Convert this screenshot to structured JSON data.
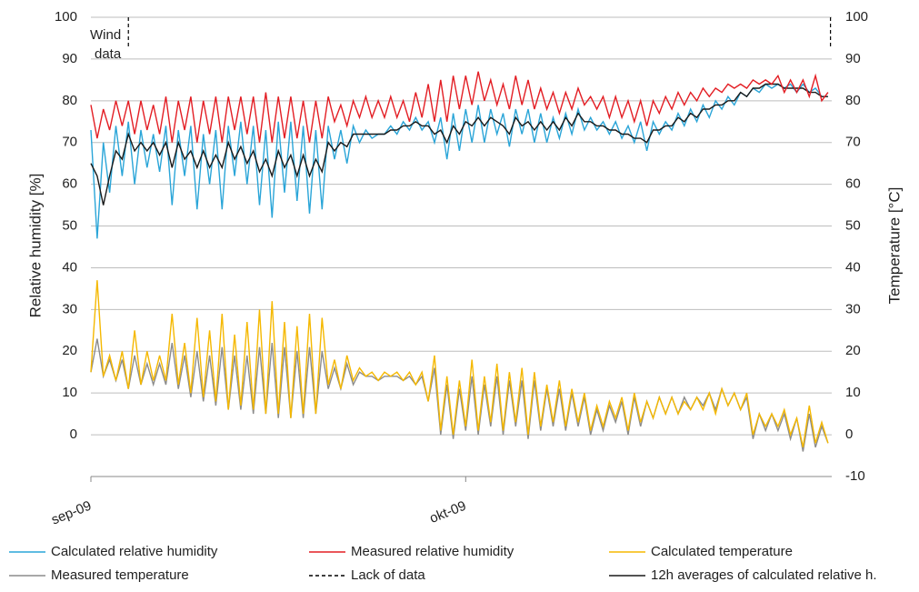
{
  "chart_data": {
    "type": "line",
    "y_label": "Relative humidity [%]",
    "y2_label": "Temperature [°C]",
    "xlim": [
      0,
      59.3
    ],
    "xticks": [
      {
        "value": 0,
        "label": "sep-09"
      },
      {
        "value": 30,
        "label": "okt-09"
      }
    ],
    "ylim": [
      -10,
      100
    ],
    "yticks": [
      0,
      10,
      20,
      30,
      40,
      50,
      60,
      70,
      80,
      90,
      100
    ],
    "y2lim": [
      -10,
      100
    ],
    "y2ticks": [
      -10,
      0,
      10,
      20,
      30,
      40,
      50,
      60,
      70,
      80,
      90,
      100
    ],
    "grid": true,
    "legend": "bottom",
    "annotation": [
      "Wind",
      "data"
    ],
    "x": [
      0,
      0.5,
      1,
      1.5,
      2,
      2.5,
      3,
      3.5,
      4,
      4.5,
      5,
      5.5,
      6,
      6.5,
      7,
      7.5,
      8,
      8.5,
      9,
      9.5,
      10,
      10.5,
      11,
      11.5,
      12,
      12.5,
      13,
      13.5,
      14,
      14.5,
      15,
      15.5,
      16,
      16.5,
      17,
      17.5,
      18,
      18.5,
      19,
      19.5,
      20,
      20.5,
      21,
      21.5,
      22,
      22.5,
      23,
      23.5,
      24,
      24.5,
      25,
      25.5,
      26,
      26.5,
      27,
      27.5,
      28,
      28.5,
      29,
      29.5,
      30,
      30.5,
      31,
      31.5,
      32,
      32.5,
      33,
      33.5,
      34,
      34.5,
      35,
      35.5,
      36,
      36.5,
      37,
      37.5,
      38,
      38.5,
      39,
      39.5,
      40,
      40.5,
      41,
      41.5,
      42,
      42.5,
      43,
      43.5,
      44,
      44.5,
      45,
      45.5,
      46,
      46.5,
      47,
      47.5,
      48,
      48.5,
      49,
      49.5,
      50,
      50.5,
      51,
      51.5,
      52,
      52.5,
      53,
      53.5,
      54,
      54.5,
      55,
      55.5,
      56,
      56.5,
      57,
      57.5,
      58,
      58.5,
      59
    ],
    "series": [
      {
        "name": "Calculated relative humidity",
        "color": "#2aa5d8",
        "axis": "y",
        "values": [
          73,
          47,
          70,
          58,
          74,
          62,
          75,
          60,
          73,
          64,
          72,
          63,
          74,
          55,
          73,
          62,
          74,
          54,
          72,
          60,
          73,
          54,
          74,
          62,
          75,
          60,
          74,
          55,
          73,
          52,
          75,
          58,
          75,
          56,
          74,
          53,
          73,
          54,
          74,
          66,
          73,
          65,
          74,
          70,
          73,
          71,
          72,
          72,
          74,
          72,
          75,
          73,
          76,
          73,
          75,
          70,
          76,
          66,
          77,
          68,
          78,
          70,
          79,
          70,
          78,
          72,
          77,
          69,
          78,
          72,
          78,
          70,
          77,
          70,
          76,
          71,
          77,
          72,
          78,
          73,
          76,
          73,
          75,
          72,
          75,
          71,
          74,
          70,
          75,
          68,
          75,
          72,
          75,
          73,
          77,
          74,
          78,
          75,
          79,
          76,
          80,
          78,
          81,
          79,
          82,
          81,
          83,
          82,
          84,
          83,
          84,
          83,
          84,
          82,
          84,
          82,
          83,
          81,
          81
        ]
      },
      {
        "name": "Measured relative humidity",
        "color": "#e31e24",
        "axis": "y",
        "values": [
          79,
          71,
          78,
          73,
          80,
          74,
          80,
          72,
          80,
          73,
          79,
          72,
          81,
          70,
          80,
          73,
          81,
          70,
          80,
          72,
          81,
          70,
          81,
          73,
          81,
          72,
          81,
          70,
          82,
          70,
          81,
          71,
          81,
          71,
          80,
          70,
          80,
          71,
          81,
          75,
          79,
          74,
          80,
          76,
          81,
          76,
          80,
          76,
          81,
          76,
          80,
          75,
          82,
          76,
          84,
          75,
          85,
          75,
          86,
          78,
          86,
          79,
          87,
          80,
          85,
          79,
          84,
          78,
          86,
          79,
          85,
          78,
          83,
          78,
          82,
          77,
          82,
          78,
          83,
          79,
          81,
          78,
          81,
          76,
          81,
          76,
          80,
          75,
          80,
          74,
          80,
          77,
          81,
          78,
          82,
          79,
          82,
          80,
          83,
          81,
          83,
          82,
          84,
          83,
          84,
          83,
          85,
          84,
          85,
          84,
          86,
          82,
          85,
          82,
          85,
          81,
          86,
          80,
          82
        ]
      },
      {
        "name": "Calculated temperature",
        "color": "#f5b800",
        "axis": "y2",
        "values": [
          15,
          37,
          14,
          19,
          13,
          20,
          11,
          25,
          12,
          20,
          13,
          19,
          13,
          29,
          12,
          22,
          10,
          28,
          9,
          25,
          8,
          29,
          6,
          24,
          7,
          27,
          6,
          30,
          5,
          32,
          5,
          27,
          4,
          26,
          5,
          29,
          5,
          28,
          12,
          18,
          11,
          19,
          13,
          16,
          14,
          15,
          13,
          15,
          14,
          15,
          13,
          15,
          12,
          15,
          8,
          19,
          1,
          14,
          0,
          13,
          2,
          18,
          1,
          14,
          3,
          17,
          1,
          15,
          3,
          16,
          0,
          15,
          2,
          12,
          3,
          13,
          2,
          11,
          3,
          10,
          1,
          7,
          2,
          8,
          4,
          9,
          1,
          10,
          3,
          8,
          4,
          9,
          5,
          9,
          5,
          8,
          6,
          9,
          6,
          10,
          5,
          11,
          7,
          10,
          6,
          10,
          0,
          5,
          2,
          5,
          2,
          6,
          0,
          4,
          -3,
          7,
          -2,
          3,
          -2
        ]
      },
      {
        "name": "Measured temperature",
        "color": "#8c8c8c",
        "axis": "y2",
        "values": [
          15,
          23,
          14,
          18,
          13,
          18,
          11,
          19,
          12,
          17,
          12,
          17,
          12,
          22,
          11,
          19,
          9,
          20,
          8,
          19,
          7,
          21,
          6,
          19,
          6,
          19,
          5,
          21,
          5,
          22,
          4,
          21,
          4,
          20,
          4,
          21,
          5,
          20,
          11,
          16,
          11,
          17,
          12,
          15,
          14,
          14,
          13,
          14,
          14,
          14,
          13,
          14,
          12,
          14,
          8,
          16,
          0,
          12,
          -1,
          11,
          1,
          14,
          0,
          12,
          2,
          14,
          0,
          13,
          2,
          13,
          -1,
          13,
          1,
          11,
          2,
          11,
          1,
          10,
          2,
          9,
          0,
          6,
          1,
          7,
          3,
          8,
          0,
          9,
          2,
          8,
          4,
          9,
          5,
          9,
          5,
          9,
          6,
          9,
          7,
          10,
          6,
          11,
          7,
          10,
          6,
          9,
          -1,
          5,
          1,
          5,
          1,
          5,
          -1,
          4,
          -4,
          5,
          -3,
          2,
          -2
        ]
      },
      {
        "name": "Lack of data",
        "color": "#000000",
        "dashed": true,
        "axis": "y",
        "x": [
          3,
          59.2
        ],
        "values": [
          93,
          93
        ]
      },
      {
        "name": "12h averages of calculated relative h.",
        "color": "#1a1a1a",
        "axis": "y",
        "values": [
          65,
          62,
          55,
          62,
          68,
          66,
          72,
          68,
          70,
          68,
          70,
          67,
          70,
          64,
          70,
          66,
          68,
          64,
          68,
          64,
          67,
          64,
          70,
          66,
          69,
          65,
          68,
          63,
          66,
          62,
          68,
          64,
          67,
          62,
          67,
          62,
          66,
          63,
          70,
          68,
          70,
          69,
          72,
          72,
          72,
          72,
          72,
          72,
          73,
          73,
          74,
          74,
          75,
          74,
          74,
          72,
          73,
          70,
          74,
          72,
          75,
          74,
          76,
          74,
          76,
          75,
          74,
          72,
          76,
          74,
          75,
          73,
          75,
          73,
          75,
          73,
          76,
          74,
          77,
          75,
          75,
          74,
          74,
          73,
          73,
          72,
          72,
          71,
          71,
          70,
          73,
          73,
          74,
          74,
          76,
          75,
          77,
          76,
          78,
          78,
          79,
          79,
          80,
          80,
          82,
          81,
          83,
          83,
          84,
          84,
          84,
          83,
          83,
          83,
          83,
          82,
          82,
          81,
          81
        ]
      }
    ]
  }
}
